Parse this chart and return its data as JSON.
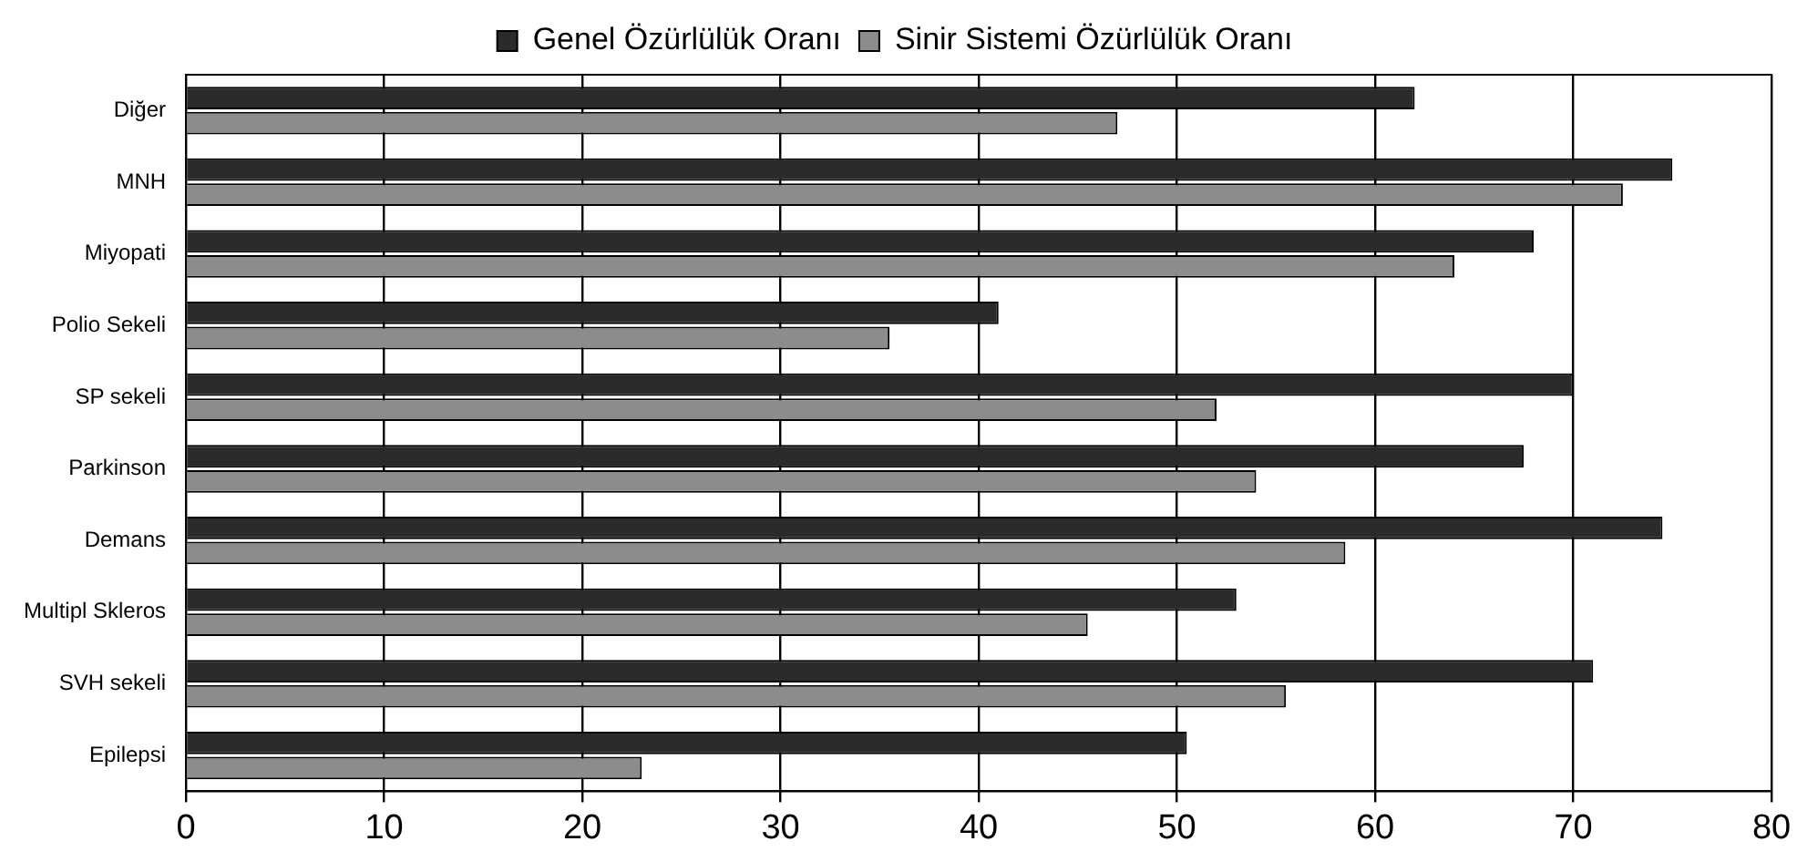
{
  "chart_data": {
    "type": "bar",
    "orientation": "horizontal",
    "categories": [
      "Diğer",
      "MNH",
      "Miyopati",
      "Polio Sekeli",
      "SP sekeli",
      "Parkinson",
      "Demans",
      "Multipl Skleros",
      "SVH sekeli",
      "Epilepsi"
    ],
    "series": [
      {
        "name": "Genel Özürlülük Oranı",
        "color": "#2b2b2b",
        "values": [
          62,
          75,
          68,
          41,
          70,
          67.5,
          74.5,
          53,
          71,
          50.5
        ]
      },
      {
        "name": "Sinir Sistemi Özürlülük Oranı",
        "color": "#8c8c8c",
        "values": [
          47,
          72.5,
          64,
          35.5,
          52,
          54,
          58.5,
          45.5,
          55.5,
          23
        ]
      }
    ],
    "xlim": [
      0,
      80
    ],
    "xticks": [
      0,
      10,
      20,
      30,
      40,
      50,
      60,
      70,
      80
    ],
    "grid": "x",
    "legend": "top"
  }
}
